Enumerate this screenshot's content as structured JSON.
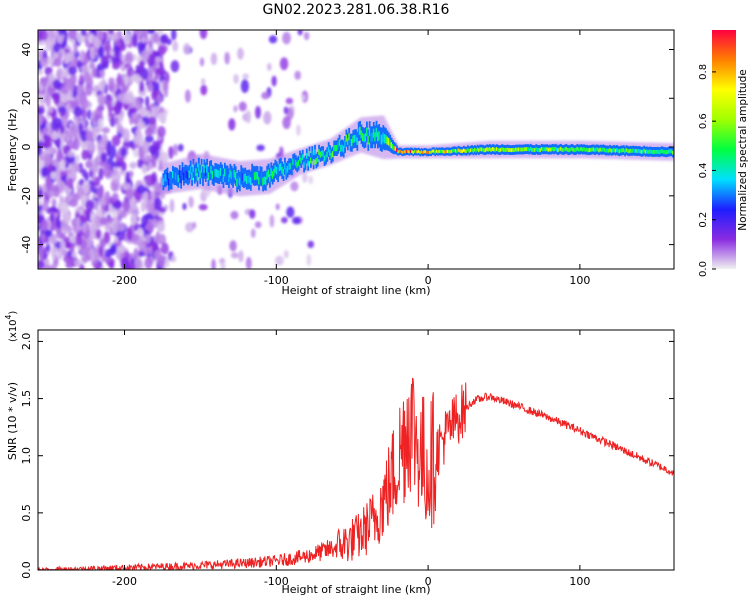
{
  "figure_title": "GN02.2023.281.06.38.R16",
  "chart_data": [
    {
      "type": "heatmap",
      "xlabel": "Height of straight line (km)",
      "ylabel": "Frequency (Hz)",
      "xlim": [
        -257,
        162
      ],
      "ylim": [
        -50,
        48
      ],
      "xticks": [
        -200,
        -100,
        0,
        100
      ],
      "yticks": [
        -40,
        -20,
        0,
        20,
        40
      ],
      "grid": false,
      "colorbar": {
        "label": "Normalized spectral amplitude",
        "range": [
          0,
          0.97
        ],
        "ticks": [
          0.0,
          0.2,
          0.4,
          0.6,
          0.8
        ],
        "colormap": [
          "#f0f0f0",
          "#8a2be2",
          "#1e1eff",
          "#00e0ff",
          "#00ff40",
          "#a0ff00",
          "#ffff00",
          "#ff8000",
          "#ff0040"
        ]
      },
      "signal_band": [
        {
          "x": -175,
          "center": -13,
          "width": 7,
          "level": 0.3
        },
        {
          "x": -150,
          "center": -10,
          "width": 8,
          "level": 0.35
        },
        {
          "x": -125,
          "center": -13,
          "width": 8,
          "level": 0.35
        },
        {
          "x": -105,
          "center": -12,
          "width": 8,
          "level": 0.4
        },
        {
          "x": -85,
          "center": -6,
          "width": 6,
          "level": 0.4
        },
        {
          "x": -65,
          "center": -2,
          "width": 6,
          "level": 0.45
        },
        {
          "x": -45,
          "center": 5,
          "width": 8,
          "level": 0.45
        },
        {
          "x": -30,
          "center": 4,
          "width": 10,
          "level": 0.35
        },
        {
          "x": -20,
          "center": -2,
          "width": 3,
          "level": 0.9
        },
        {
          "x": 0,
          "center": -2,
          "width": 3,
          "level": 0.7
        },
        {
          "x": 40,
          "center": -1,
          "width": 4,
          "level": 0.55
        },
        {
          "x": 100,
          "center": -1,
          "width": 4,
          "level": 0.5
        },
        {
          "x": 160,
          "center": -2,
          "width": 4,
          "level": 0.45
        }
      ]
    },
    {
      "type": "line",
      "xlabel": "Height of straight line (km)",
      "ylabel": "SNR (10 * v/v)",
      "y_multiplier": "(x10",
      "y_multiplier_exp": "4",
      "y_multiplier_close": ")",
      "xlim": [
        -257,
        162
      ],
      "ylim": [
        0,
        2.1
      ],
      "xticks": [
        -200,
        -100,
        0,
        100
      ],
      "yticks": [
        0.0,
        0.5,
        1.0,
        1.5,
        2.0
      ],
      "grid": false,
      "series": [
        {
          "color": "#ee2222",
          "x": [
            -257,
            -200,
            -150,
            -120,
            -100,
            -80,
            -60,
            -45,
            -35,
            -25,
            -18,
            -12,
            -5,
            0,
            10,
            20,
            30,
            40,
            60,
            80,
            100,
            120,
            140,
            162
          ],
          "y": [
            0.0,
            0.02,
            0.04,
            0.06,
            0.08,
            0.12,
            0.2,
            0.3,
            0.45,
            0.75,
            1.05,
            1.35,
            1.0,
            0.9,
            1.15,
            1.35,
            1.48,
            1.52,
            1.43,
            1.33,
            1.22,
            1.1,
            0.98,
            0.85
          ]
        }
      ]
    }
  ]
}
